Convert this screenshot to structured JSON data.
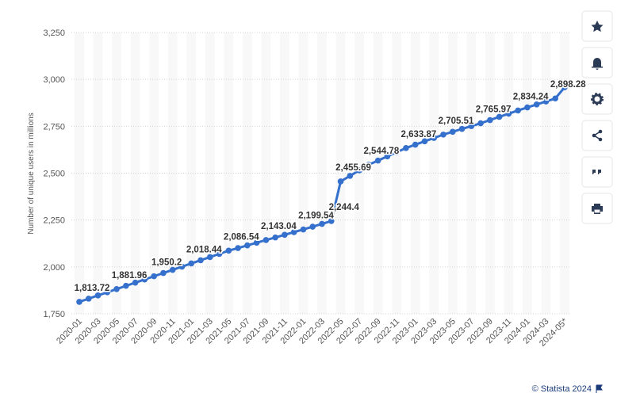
{
  "chart_data": {
    "type": "line",
    "y_label": "Number of unique users in millions",
    "source": "© Statista 2024",
    "categories": [
      "2020-01",
      null,
      "2020-03",
      null,
      "2020-05",
      null,
      "2020-07",
      null,
      "2020-09",
      null,
      "2020-11",
      null,
      "2021-01",
      null,
      "2021-03",
      null,
      "2021-05",
      null,
      "2021-07",
      null,
      "2021-09",
      null,
      "2021-11",
      null,
      "2022-01",
      null,
      "2022-03",
      null,
      "2022-05",
      null,
      "2022-07",
      null,
      "2022-09",
      null,
      "2022-11",
      null,
      "2023-01",
      null,
      "2023-03",
      null,
      "2023-05",
      null,
      "2023-07",
      null,
      "2023-09",
      null,
      "2023-11",
      null,
      "2024-01",
      null,
      "2024-03",
      null,
      "2024-05*"
    ],
    "series": [
      {
        "name": "Unique users",
        "color": "#3470cc",
        "values": [
          1813.72,
          1830.78,
          1847.84,
          1864.9,
          1881.96,
          1899.02,
          1916.08,
          1933.14,
          1950.2,
          1967.26,
          1984.32,
          2001.38,
          2018.44,
          2035.47,
          2052.49,
          2069.52,
          2086.54,
          2100.67,
          2114.79,
          2128.92,
          2143.04,
          2157.17,
          2171.29,
          2185.42,
          2199.54,
          2214.49,
          2229.45,
          2244.4,
          2455.69,
          2485.39,
          2515.08,
          2544.78,
          2567.05,
          2589.33,
          2611.6,
          2633.87,
          2651.78,
          2669.69,
          2687.6,
          2705.51,
          2720.63,
          2735.74,
          2750.86,
          2765.97,
          2783.04,
          2800.1,
          2817.17,
          2834.24,
          2850.25,
          2866.26,
          2882.27,
          2898.28,
          2958
        ],
        "value_labels": [
          "1,813.72",
          null,
          null,
          null,
          "1,881.96",
          null,
          null,
          null,
          "1,950.2",
          null,
          null,
          null,
          "2,018.44",
          null,
          null,
          null,
          "2,086.54",
          null,
          null,
          null,
          "2,143.04",
          null,
          null,
          null,
          "2,199.54",
          null,
          null,
          "2,244.4",
          "2,455.69",
          null,
          null,
          "2,544.78",
          null,
          null,
          null,
          "2,633.87",
          null,
          null,
          null,
          "2,705.51",
          null,
          null,
          null,
          "2,765.97",
          null,
          null,
          null,
          "2,834.24",
          null,
          null,
          null,
          "2,898.28",
          null
        ]
      }
    ],
    "ylim": [
      1750,
      3250
    ],
    "yticks": [
      {
        "value": 1750,
        "label": "1,750"
      },
      {
        "value": 2000,
        "label": "2,000"
      },
      {
        "value": 2250,
        "label": "2,250"
      },
      {
        "value": 2500,
        "label": "2,500"
      },
      {
        "value": 2750,
        "label": "2,750"
      },
      {
        "value": 3000,
        "label": "3,000"
      },
      {
        "value": 3250,
        "label": "3,250"
      }
    ],
    "grid": true
  }
}
